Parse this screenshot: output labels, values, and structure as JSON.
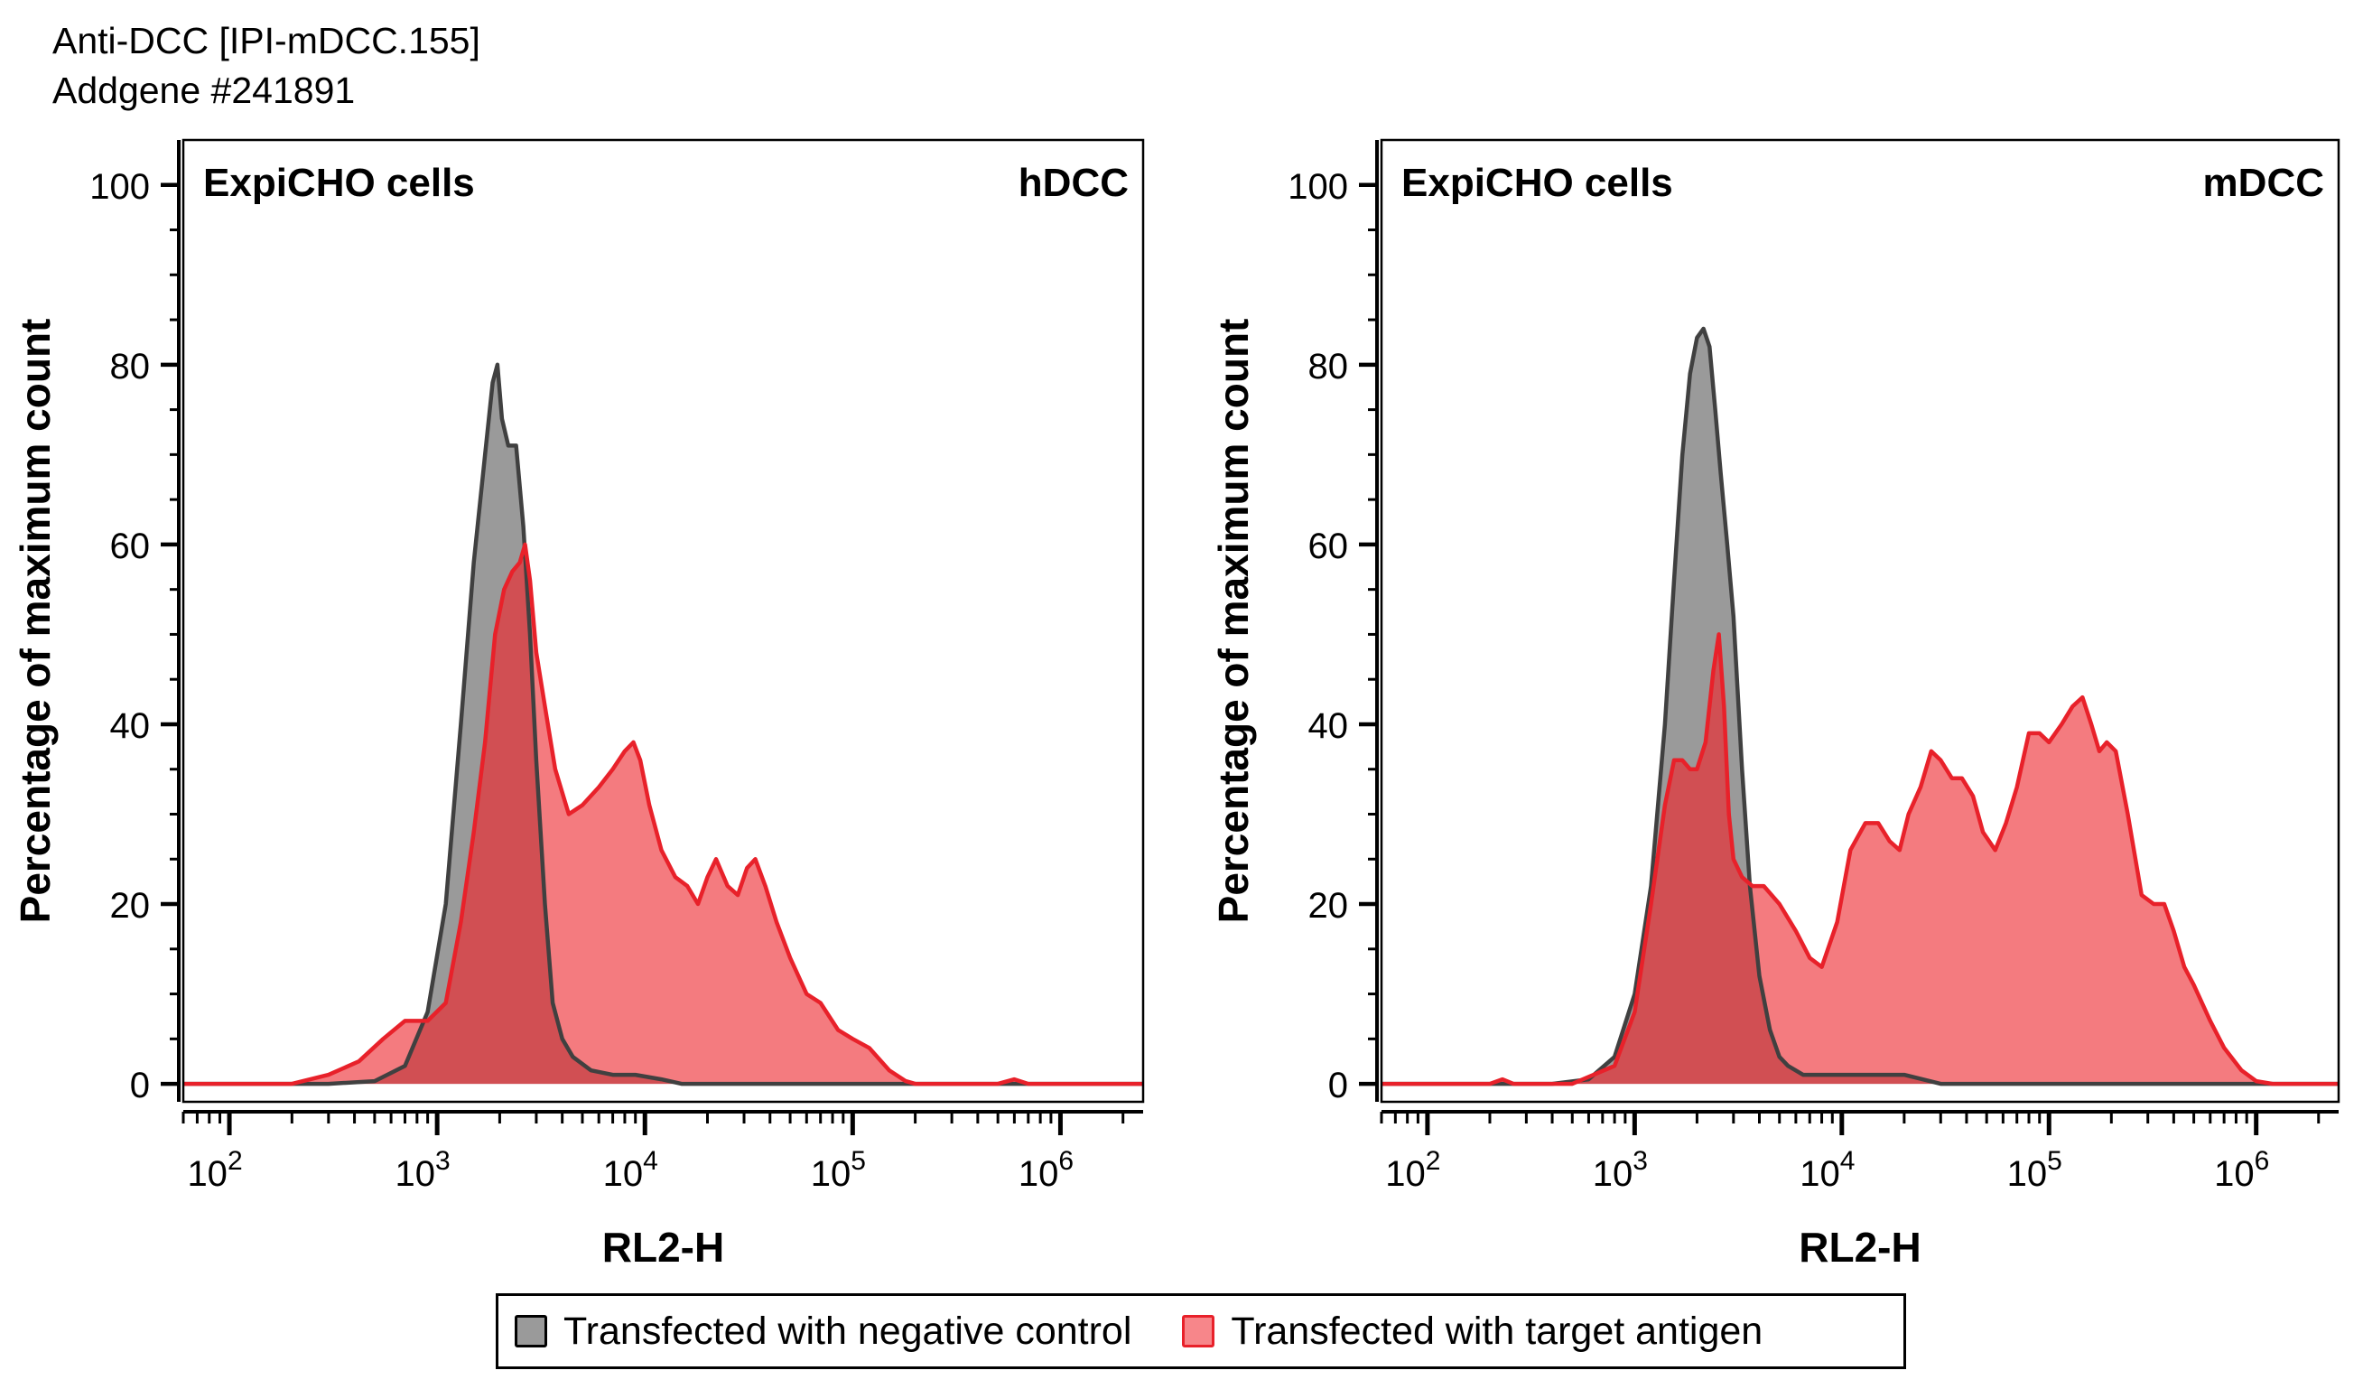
{
  "header": {
    "line1": "Anti-DCC [IPI-mDCC.155]",
    "line2": "Addgene #241891"
  },
  "legend": {
    "negative": "Transfected with negative control",
    "target": "Transfected with target antigen"
  },
  "colors": {
    "negative_fill": "#9a9a9a",
    "negative_line": "#404040",
    "target_fill": "#f47b7f",
    "target_line": "#e8212a",
    "overlap_fill": "#d14f53"
  },
  "chart_data": [
    {
      "type": "area",
      "title": "ExpiCHO cells",
      "label_right": "hDCC",
      "xlabel": "RL2-H",
      "ylabel": "Percentage of maximum count",
      "x_scale": "log",
      "xlim": [
        60,
        2500000
      ],
      "ylim": [
        -2,
        105
      ],
      "yticks": [
        0,
        20,
        40,
        60,
        80,
        100
      ],
      "xticks": [
        100,
        1000,
        10000,
        100000,
        1000000
      ],
      "xtick_labels": [
        [
          "10",
          "2"
        ],
        [
          "10",
          "3"
        ],
        [
          "10",
          "4"
        ],
        [
          "10",
          "5"
        ],
        [
          "10",
          "6"
        ]
      ],
      "series": [
        {
          "name": "Transfected with negative control",
          "x": [
            60,
            300,
            500,
            700,
            900,
            1100,
            1300,
            1500,
            1700,
            1850,
            1950,
            2050,
            2200,
            2400,
            2600,
            2800,
            3000,
            3300,
            3600,
            4000,
            4500,
            5500,
            7000,
            9000,
            12000,
            15000,
            2500000
          ],
          "y": [
            0,
            0,
            0.3,
            2,
            8,
            20,
            40,
            58,
            70,
            78,
            80,
            74,
            71,
            71,
            62,
            50,
            36,
            20,
            9,
            5,
            3,
            1.5,
            1,
            1,
            0.5,
            0,
            0
          ]
        },
        {
          "name": "Transfected with target antigen",
          "x": [
            60,
            200,
            300,
            420,
            550,
            700,
            900,
            1100,
            1300,
            1500,
            1700,
            1900,
            2100,
            2300,
            2500,
            2650,
            2800,
            3000,
            3300,
            3700,
            4300,
            5000,
            6000,
            7000,
            8000,
            8800,
            9500,
            10500,
            12000,
            14000,
            16000,
            18000,
            20000,
            22000,
            25000,
            28000,
            31000,
            34000,
            38000,
            43000,
            50000,
            60000,
            70000,
            85000,
            100000,
            120000,
            150000,
            180000,
            200000,
            500000,
            600000,
            700000,
            2500000
          ],
          "y": [
            0,
            0,
            1,
            2.5,
            5,
            7,
            7,
            9,
            18,
            28,
            38,
            50,
            55,
            57,
            58,
            60,
            56,
            48,
            42,
            35,
            30,
            31,
            33,
            35,
            37,
            38,
            36,
            31,
            26,
            23,
            22,
            20,
            23,
            25,
            22,
            21,
            24,
            25,
            22,
            18,
            14,
            10,
            9,
            6,
            5,
            4,
            1.5,
            0.3,
            0,
            0,
            0.5,
            0,
            0
          ]
        }
      ]
    },
    {
      "type": "area",
      "title": "ExpiCHO cells",
      "label_right": "mDCC",
      "xlabel": "RL2-H",
      "ylabel": "Percentage of maximum count",
      "x_scale": "log",
      "xlim": [
        60,
        2500000
      ],
      "ylim": [
        -2,
        105
      ],
      "yticks": [
        0,
        20,
        40,
        60,
        80,
        100
      ],
      "xticks": [
        100,
        1000,
        10000,
        100000,
        1000000
      ],
      "xtick_labels": [
        [
          "10",
          "2"
        ],
        [
          "10",
          "3"
        ],
        [
          "10",
          "4"
        ],
        [
          "10",
          "5"
        ],
        [
          "10",
          "6"
        ]
      ],
      "series": [
        {
          "name": "Transfected with negative control",
          "x": [
            60,
            400,
            600,
            800,
            1000,
            1200,
            1400,
            1550,
            1700,
            1850,
            2000,
            2150,
            2300,
            2450,
            2600,
            2800,
            3000,
            3300,
            3600,
            4000,
            4500,
            5000,
            5500,
            6500,
            8000,
            20000,
            30000,
            2500000
          ],
          "y": [
            0,
            0,
            0.5,
            3,
            10,
            22,
            40,
            56,
            70,
            79,
            83,
            84,
            82,
            75,
            68,
            60,
            52,
            35,
            22,
            12,
            6,
            3,
            2,
            1,
            1,
            1,
            0,
            0
          ]
        },
        {
          "name": "Transfected with target antigen",
          "x": [
            60,
            200,
            230,
            260,
            500,
            800,
            1000,
            1200,
            1400,
            1550,
            1700,
            1850,
            2000,
            2200,
            2400,
            2550,
            2700,
            2850,
            3000,
            3300,
            3700,
            4200,
            5000,
            6000,
            7000,
            8000,
            9500,
            11000,
            13000,
            15000,
            17000,
            19000,
            21000,
            24000,
            27000,
            30000,
            34000,
            38000,
            43000,
            48000,
            55000,
            62000,
            70000,
            80000,
            90000,
            100000,
            115000,
            130000,
            145000,
            160000,
            175000,
            190000,
            210000,
            240000,
            280000,
            320000,
            360000,
            400000,
            450000,
            500000,
            600000,
            700000,
            850000,
            1000000,
            1200000,
            2500000
          ],
          "y": [
            0,
            0,
            0.5,
            0,
            0,
            2,
            8,
            20,
            31,
            36,
            36,
            35,
            35,
            38,
            46,
            50,
            42,
            30,
            25,
            23,
            22,
            22,
            20,
            17,
            14,
            13,
            18,
            26,
            29,
            29,
            27,
            26,
            30,
            33,
            37,
            36,
            34,
            34,
            32,
            28,
            26,
            29,
            33,
            39,
            39,
            38,
            40,
            42,
            43,
            40,
            37,
            38,
            37,
            30,
            21,
            20,
            20,
            17,
            13,
            11,
            7,
            4,
            1.5,
            0.3,
            0,
            0
          ]
        }
      ]
    }
  ]
}
